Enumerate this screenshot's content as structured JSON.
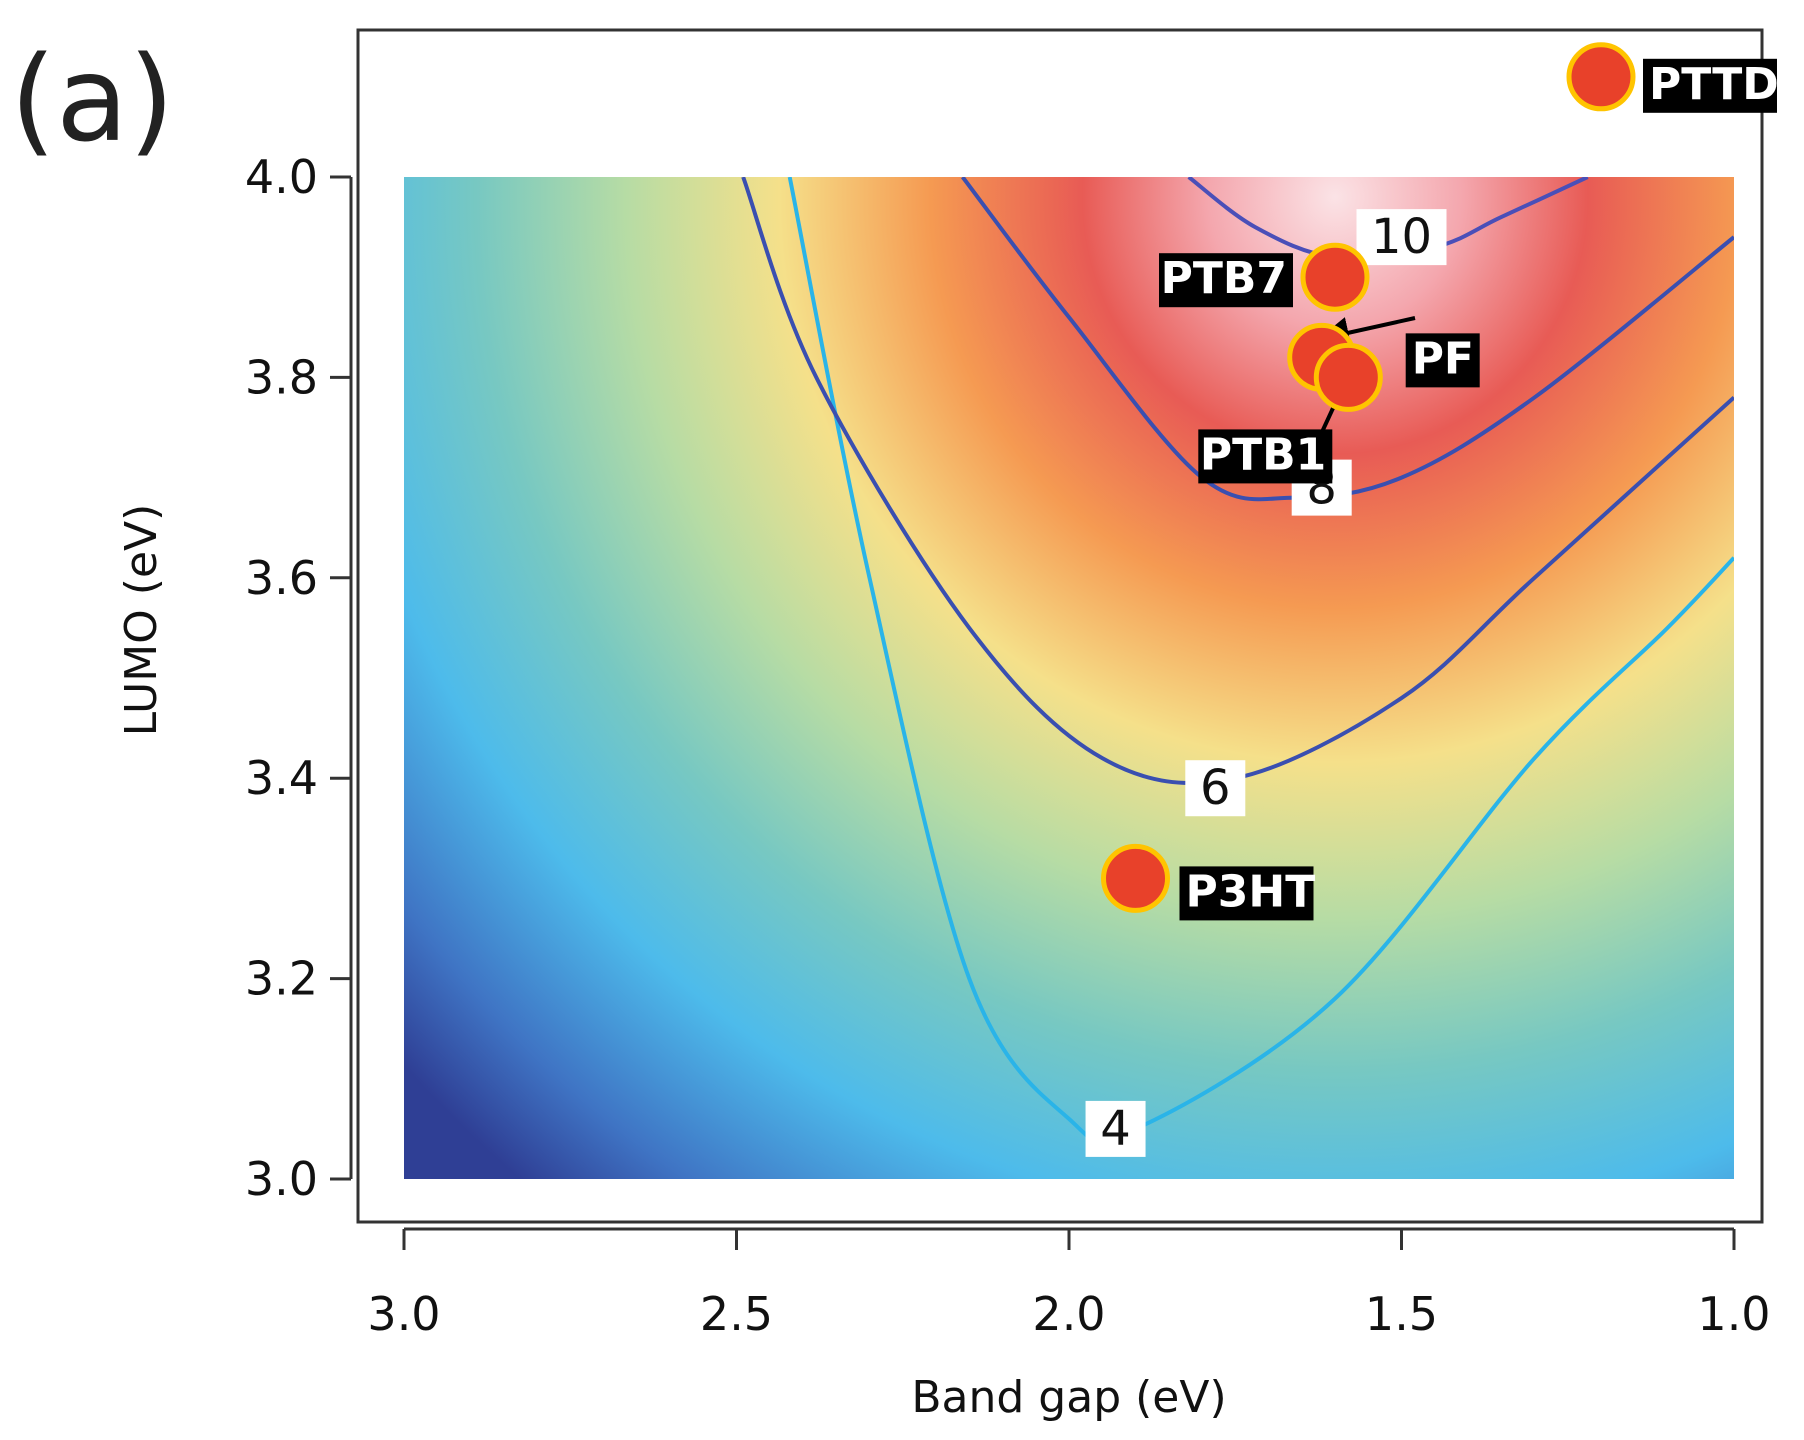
{
  "panel_label": "(a)",
  "chart_data": {
    "type": "contour",
    "xlabel": "Band gap (eV)",
    "ylabel": "LUMO (eV)",
    "xlim": [
      3.0,
      1.0
    ],
    "ylim": [
      3.0,
      4.0
    ],
    "x_axis_reversed": true,
    "x_ticks": [
      "3.0",
      "2.5",
      "2.0",
      "1.5",
      "1.0"
    ],
    "y_ticks": [
      "3.0",
      "3.2",
      "3.4",
      "3.6",
      "3.8",
      "4.0"
    ],
    "colormap": "spectral: dark blue (low) -> cyan -> green -> yellow -> orange -> red -> pink (high)",
    "contour_lines": [
      {
        "label": "4",
        "color": "#2ab4e8",
        "points": [
          [
            2.42,
            4.0
          ],
          [
            2.3,
            3.6
          ],
          [
            2.15,
            3.2
          ],
          [
            2.0,
            3.06
          ],
          [
            1.9,
            3.05
          ],
          [
            1.6,
            3.18
          ],
          [
            1.3,
            3.42
          ],
          [
            1.1,
            3.55
          ],
          [
            1.0,
            3.62
          ]
        ]
      },
      {
        "label": "6",
        "color": "#3a4fb0",
        "points": [
          [
            2.49,
            4.0
          ],
          [
            2.38,
            3.8
          ],
          [
            2.15,
            3.55
          ],
          [
            1.95,
            3.42
          ],
          [
            1.75,
            3.4
          ],
          [
            1.5,
            3.48
          ],
          [
            1.3,
            3.6
          ],
          [
            1.0,
            3.78
          ]
        ]
      },
      {
        "label": "8",
        "color": "#3a4fb0",
        "points": [
          [
            2.16,
            4.0
          ],
          [
            2.0,
            3.86
          ],
          [
            1.8,
            3.7
          ],
          [
            1.66,
            3.68
          ],
          [
            1.5,
            3.7
          ],
          [
            1.3,
            3.78
          ],
          [
            1.0,
            3.94
          ]
        ]
      },
      {
        "label": "10",
        "color": "#4a4fb8",
        "points": [
          [
            1.82,
            4.0
          ],
          [
            1.72,
            3.95
          ],
          [
            1.6,
            3.92
          ],
          [
            1.45,
            3.93
          ],
          [
            1.35,
            3.96
          ],
          [
            1.22,
            4.0
          ]
        ]
      }
    ],
    "points": [
      {
        "label": "PTTD",
        "x": 1.2,
        "y": 4.1
      },
      {
        "label": "PTB7",
        "x": 1.6,
        "y": 3.9
      },
      {
        "label": "PF",
        "x": 1.62,
        "y": 3.82
      },
      {
        "label": "PTB1",
        "x": 1.58,
        "y": 3.8
      },
      {
        "label": "P3HT",
        "x": 1.9,
        "y": 3.3
      }
    ],
    "point_color": "#e8412a",
    "point_edge_color": "#ffc400"
  }
}
